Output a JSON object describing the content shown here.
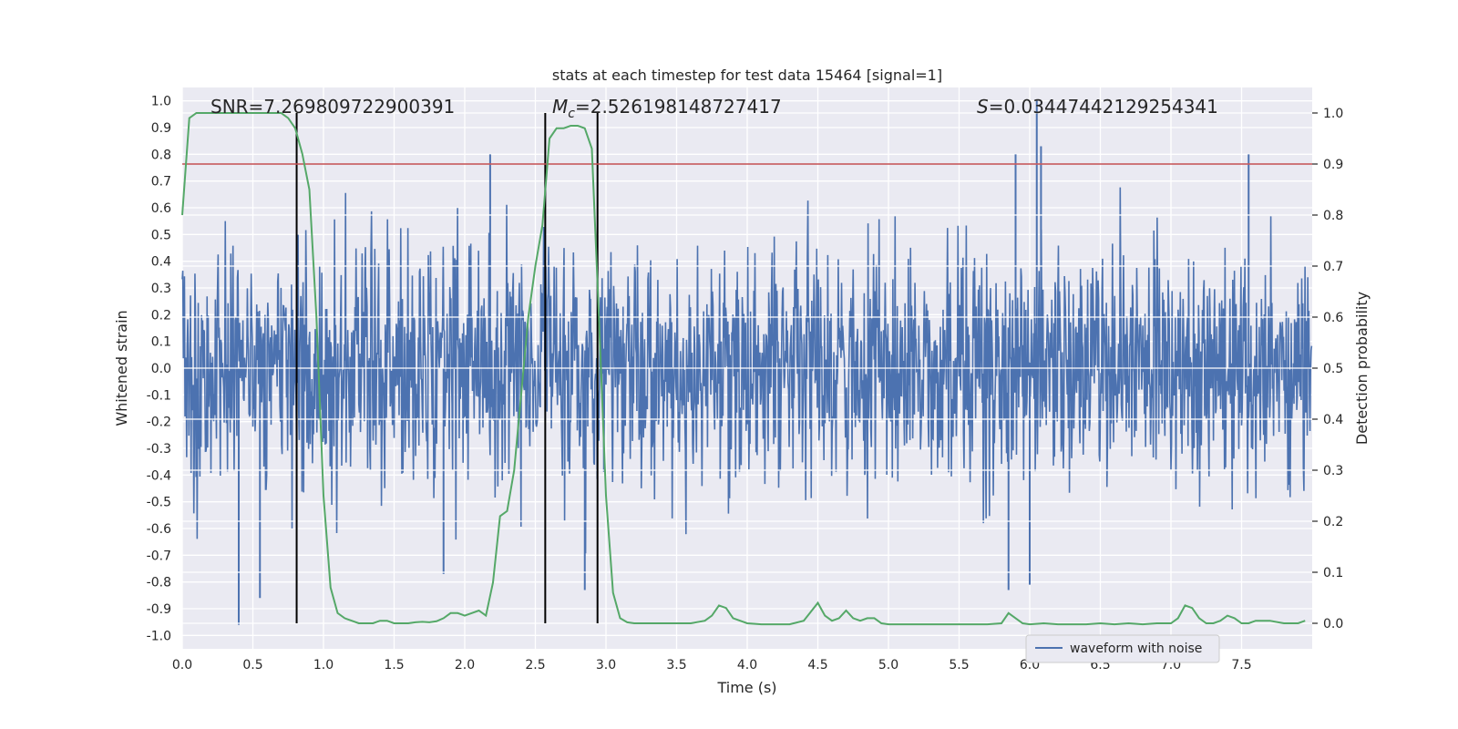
{
  "chart_data": {
    "type": "line",
    "title": "stats at each timestep for test data 15464 [signal=1]",
    "xlabel": "Time (s)",
    "ylabel": "Whitened strain",
    "y2label": "Detection probability",
    "xlim": [
      0.0,
      8.0
    ],
    "ylim": [
      -1.05,
      1.05
    ],
    "y2lim": [
      -0.05,
      1.05
    ],
    "x_ticks": [
      "0.0",
      "0.5",
      "1.0",
      "1.5",
      "2.0",
      "2.5",
      "3.0",
      "3.5",
      "4.0",
      "4.5",
      "5.0",
      "5.5",
      "6.0",
      "6.5",
      "7.0",
      "7.5"
    ],
    "y_ticks": [
      "1.0",
      "0.9",
      "0.8",
      "0.7",
      "0.6",
      "0.5",
      "0.4",
      "0.3",
      "0.2",
      "0.1",
      "0.0",
      "-0.1",
      "-0.2",
      "-0.3",
      "-0.4",
      "-0.5",
      "-0.6",
      "-0.7",
      "-0.8",
      "-0.9",
      "-1.0"
    ],
    "y2_ticks": [
      "1.0",
      "0.9",
      "0.8",
      "0.7",
      "0.6",
      "0.5",
      "0.4",
      "0.3",
      "0.2",
      "0.1",
      "0.0"
    ],
    "grid": true,
    "annotations": {
      "snr": "SNR=7.269809722900391",
      "mc_symbol": "M",
      "mc_sub": "c",
      "mc_value": "=2.526198148727417",
      "s_symbol": "S",
      "s_value": "=0.03447442129254341"
    },
    "threshold": {
      "value": 0.9,
      "axis": "y2",
      "color": "#c44e52"
    },
    "vertical_lines": [
      0.81,
      2.57,
      2.94
    ],
    "series": [
      {
        "name": "waveform with noise",
        "axis": "y",
        "color": "#4c72b0",
        "kind": "noise",
        "sample_rate": 256,
        "description_points": {
          "peaks": [
            [
              6.05,
              1.0
            ],
            [
              6.08,
              0.83
            ],
            [
              2.18,
              0.8
            ],
            [
              5.9,
              0.8
            ],
            [
              7.55,
              0.8
            ]
          ],
          "troughs": [
            [
              0.4,
              -0.96
            ],
            [
              0.55,
              -0.86
            ],
            [
              1.85,
              -0.77
            ],
            [
              2.85,
              -0.83
            ],
            [
              5.85,
              -0.83
            ],
            [
              6.0,
              -0.81
            ]
          ]
        }
      },
      {
        "name": "detection probability",
        "axis": "y2",
        "color": "#55a868",
        "x": [
          0.0,
          0.05,
          0.1,
          0.15,
          0.2,
          0.25,
          0.3,
          0.35,
          0.4,
          0.45,
          0.5,
          0.55,
          0.6,
          0.65,
          0.7,
          0.75,
          0.8,
          0.85,
          0.9,
          0.95,
          1.0,
          1.05,
          1.1,
          1.15,
          1.2,
          1.25,
          1.3,
          1.35,
          1.4,
          1.45,
          1.5,
          1.55,
          1.6,
          1.65,
          1.7,
          1.75,
          1.8,
          1.85,
          1.9,
          1.95,
          2.0,
          2.05,
          2.1,
          2.15,
          2.2,
          2.25,
          2.3,
          2.35,
          2.4,
          2.45,
          2.5,
          2.55,
          2.6,
          2.65,
          2.7,
          2.75,
          2.8,
          2.85,
          2.9,
          2.95,
          3.0,
          3.05,
          3.1,
          3.15,
          3.2,
          3.3,
          3.4,
          3.5,
          3.6,
          3.7,
          3.75,
          3.8,
          3.85,
          3.9,
          4.0,
          4.1,
          4.2,
          4.3,
          4.4,
          4.5,
          4.55,
          4.6,
          4.65,
          4.7,
          4.75,
          4.8,
          4.85,
          4.9,
          4.95,
          5.0,
          5.05,
          5.1,
          5.2,
          5.3,
          5.4,
          5.5,
          5.6,
          5.7,
          5.8,
          5.85,
          5.9,
          5.95,
          6.0,
          6.1,
          6.2,
          6.3,
          6.4,
          6.5,
          6.6,
          6.7,
          6.8,
          6.9,
          7.0,
          7.05,
          7.1,
          7.15,
          7.2,
          7.25,
          7.3,
          7.35,
          7.4,
          7.45,
          7.5,
          7.55,
          7.6,
          7.7,
          7.8,
          7.9,
          7.95
        ],
        "values": [
          0.8,
          0.99,
          1.0,
          1.0,
          1.0,
          1.0,
          1.0,
          1.0,
          1.0,
          1.0,
          1.0,
          1.0,
          1.0,
          1.0,
          1.0,
          0.99,
          0.97,
          0.92,
          0.85,
          0.6,
          0.25,
          0.07,
          0.02,
          0.01,
          0.005,
          0.0,
          0.0,
          0.0,
          0.005,
          0.005,
          0.0,
          0.0,
          0.0,
          0.002,
          0.003,
          0.002,
          0.004,
          0.01,
          0.02,
          0.02,
          0.015,
          0.02,
          0.025,
          0.015,
          0.08,
          0.21,
          0.22,
          0.3,
          0.45,
          0.6,
          0.7,
          0.78,
          0.95,
          0.97,
          0.97,
          0.975,
          0.975,
          0.97,
          0.93,
          0.6,
          0.25,
          0.06,
          0.01,
          0.002,
          0.0,
          0.0,
          0.0,
          0.0,
          0.0,
          0.005,
          0.015,
          0.035,
          0.03,
          0.01,
          0.0,
          -0.002,
          -0.002,
          -0.002,
          0.005,
          0.04,
          0.015,
          0.005,
          0.01,
          0.025,
          0.01,
          0.005,
          0.01,
          0.01,
          0.0,
          -0.002,
          -0.002,
          -0.002,
          -0.002,
          -0.002,
          -0.002,
          -0.002,
          -0.002,
          -0.002,
          0.0,
          0.02,
          0.01,
          0.0,
          -0.002,
          0.0,
          -0.002,
          -0.002,
          -0.002,
          0.0,
          -0.002,
          0.0,
          -0.002,
          0.0,
          0.0,
          0.01,
          0.035,
          0.03,
          0.01,
          0.0,
          0.0,
          0.005,
          0.015,
          0.01,
          0.0,
          0.0,
          0.005,
          0.005,
          0.0,
          0.0,
          0.005
        ]
      }
    ],
    "legend": {
      "location": "lower center-right",
      "entries": [
        "waveform with noise"
      ]
    }
  }
}
